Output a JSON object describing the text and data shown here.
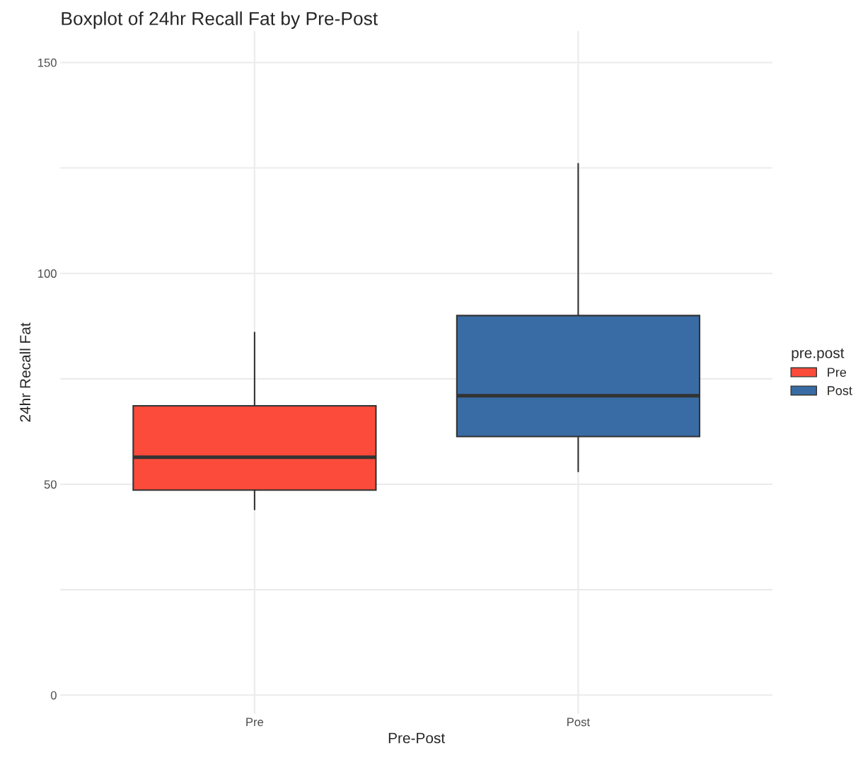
{
  "chart_data": {
    "type": "box",
    "title": "Boxplot of 24hr Recall Fat by Pre-Post",
    "xlabel": "Pre-Post",
    "ylabel": "24hr Recall Fat",
    "legend_title": "pre.post",
    "categories": [
      "Pre",
      "Post"
    ],
    "series": [
      {
        "name": "Pre",
        "color": "#fc4b3a",
        "boxes": [
          {
            "low": 44,
            "q1": 48.6,
            "median": 56.4,
            "q3": 68.6,
            "high": 86
          },
          null
        ]
      },
      {
        "name": "Post",
        "color": "#396ca4",
        "boxes": [
          null,
          {
            "low": 53,
            "q1": 61.3,
            "median": 71,
            "q3": 90,
            "high": 126
          }
        ]
      }
    ],
    "ylim": [
      -4.5,
      157.5
    ],
    "yticks": [
      0,
      {
        "value": 25,
        "label": null
      },
      50,
      {
        "value": 75,
        "label": null
      },
      100,
      {
        "value": 125,
        "label": null
      },
      150
    ],
    "grid": true,
    "legend": "right"
  }
}
